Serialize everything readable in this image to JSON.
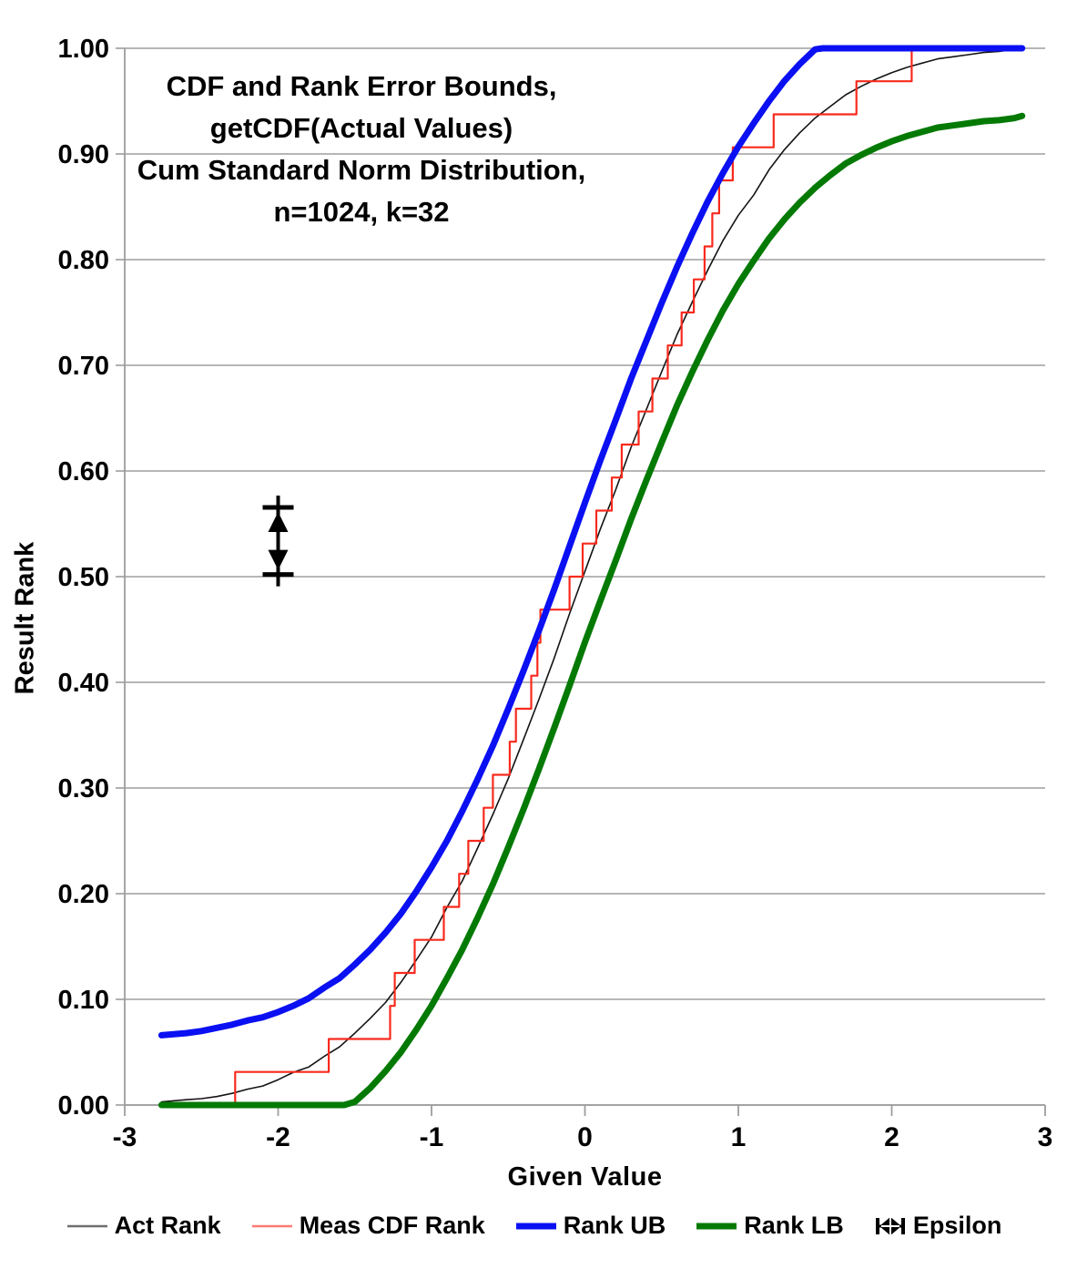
{
  "chart_data": {
    "type": "line",
    "title": "CDF and Rank Error Bounds, getCDF(Actual Values) Cum Standard Norm Distribution, n=1024, k=32",
    "title_lines": [
      "CDF and Rank Error Bounds,",
      "getCDF(Actual Values)",
      "Cum Standard Norm Distribution,",
      "n=1024, k=32"
    ],
    "xlabel": "Given Value",
    "ylabel": "Result Rank",
    "xlim": [
      -3,
      3
    ],
    "ylim": [
      0,
      1
    ],
    "grid": "horizontal",
    "legend_position": "bottom",
    "xticks": [
      {
        "v": -3,
        "label": "-3"
      },
      {
        "v": -2,
        "label": "-2"
      },
      {
        "v": -1,
        "label": "-1"
      },
      {
        "v": 0,
        "label": "0"
      },
      {
        "v": 1,
        "label": "1"
      },
      {
        "v": 2,
        "label": "2"
      },
      {
        "v": 3,
        "label": "3"
      }
    ],
    "yticks": [
      {
        "v": 0.0,
        "label": "0.00"
      },
      {
        "v": 0.1,
        "label": "0.10"
      },
      {
        "v": 0.2,
        "label": "0.20"
      },
      {
        "v": 0.3,
        "label": "0.30"
      },
      {
        "v": 0.4,
        "label": "0.40"
      },
      {
        "v": 0.5,
        "label": "0.50"
      },
      {
        "v": 0.6,
        "label": "0.60"
      },
      {
        "v": 0.7,
        "label": "0.70"
      },
      {
        "v": 0.8,
        "label": "0.80"
      },
      {
        "v": 0.9,
        "label": "0.90"
      },
      {
        "v": 1.0,
        "label": "1.00"
      }
    ],
    "grid_color": "#9d9d9d",
    "axis_color": "#9d9d9d",
    "epsilon_marker": {
      "x": -2.0,
      "y_from": 0.502,
      "y_to": 0.5655,
      "color": "#000000"
    },
    "series": [
      {
        "name": "Act Rank",
        "color": "#141414",
        "legend_color": "#6f6f6f",
        "width": 1.6,
        "swatch": "thin-line",
        "points": [
          [
            -2.76,
            0.003
          ],
          [
            -2.6,
            0.005
          ],
          [
            -2.5,
            0.006
          ],
          [
            -2.4,
            0.008
          ],
          [
            -2.3,
            0.011
          ],
          [
            -2.2,
            0.015
          ],
          [
            -2.1,
            0.018
          ],
          [
            -2.0,
            0.024
          ],
          [
            -1.9,
            0.031
          ],
          [
            -1.8,
            0.036
          ],
          [
            -1.7,
            0.046
          ],
          [
            -1.6,
            0.055
          ],
          [
            -1.5,
            0.068
          ],
          [
            -1.4,
            0.082
          ],
          [
            -1.3,
            0.097
          ],
          [
            -1.2,
            0.116
          ],
          [
            -1.1,
            0.137
          ],
          [
            -1.0,
            0.159
          ],
          [
            -0.9,
            0.187
          ],
          [
            -0.8,
            0.212
          ],
          [
            -0.7,
            0.243
          ],
          [
            -0.6,
            0.275
          ],
          [
            -0.5,
            0.309
          ],
          [
            -0.4,
            0.346
          ],
          [
            -0.3,
            0.384
          ],
          [
            -0.2,
            0.423
          ],
          [
            -0.1,
            0.465
          ],
          [
            0.0,
            0.505
          ],
          [
            0.1,
            0.545
          ],
          [
            0.2,
            0.582
          ],
          [
            0.3,
            0.622
          ],
          [
            0.4,
            0.658
          ],
          [
            0.5,
            0.694
          ],
          [
            0.6,
            0.729
          ],
          [
            0.7,
            0.76
          ],
          [
            0.8,
            0.79
          ],
          [
            0.9,
            0.818
          ],
          [
            1.0,
            0.842
          ],
          [
            1.1,
            0.861
          ],
          [
            1.2,
            0.885
          ],
          [
            1.3,
            0.904
          ],
          [
            1.4,
            0.92
          ],
          [
            1.5,
            0.934
          ],
          [
            1.6,
            0.945
          ],
          [
            1.7,
            0.956
          ],
          [
            1.8,
            0.964
          ],
          [
            1.9,
            0.971
          ],
          [
            2.0,
            0.977
          ],
          [
            2.1,
            0.982
          ],
          [
            2.2,
            0.986
          ],
          [
            2.3,
            0.99
          ],
          [
            2.4,
            0.992
          ],
          [
            2.5,
            0.994
          ],
          [
            2.6,
            0.996
          ],
          [
            2.7,
            0.997
          ],
          [
            2.8,
            0.999
          ],
          [
            2.85,
            1.0
          ]
        ]
      },
      {
        "name": "Meas CDF Rank",
        "color": "#f82a1d",
        "legend_color": "#ff7a72",
        "width": 2.2,
        "swatch": "thin-line",
        "points": [
          [
            -2.76,
            0
          ],
          [
            -2.28,
            0
          ],
          [
            -2.28,
            0.0313
          ],
          [
            -1.67,
            0.0313
          ],
          [
            -1.67,
            0.0625
          ],
          [
            -1.27,
            0.0625
          ],
          [
            -1.27,
            0.0938
          ],
          [
            -1.24,
            0.0938
          ],
          [
            -1.24,
            0.125
          ],
          [
            -1.11,
            0.125
          ],
          [
            -1.11,
            0.1563
          ],
          [
            -0.92,
            0.1563
          ],
          [
            -0.92,
            0.1875
          ],
          [
            -0.82,
            0.1875
          ],
          [
            -0.82,
            0.2188
          ],
          [
            -0.76,
            0.2188
          ],
          [
            -0.76,
            0.25
          ],
          [
            -0.66,
            0.25
          ],
          [
            -0.66,
            0.2813
          ],
          [
            -0.6,
            0.2813
          ],
          [
            -0.6,
            0.3125
          ],
          [
            -0.49,
            0.3125
          ],
          [
            -0.49,
            0.3438
          ],
          [
            -0.45,
            0.3438
          ],
          [
            -0.45,
            0.375
          ],
          [
            -0.35,
            0.375
          ],
          [
            -0.35,
            0.4063
          ],
          [
            -0.31,
            0.4063
          ],
          [
            -0.31,
            0.4375
          ],
          [
            -0.29,
            0.4375
          ],
          [
            -0.29,
            0.4688
          ],
          [
            -0.1,
            0.4688
          ],
          [
            -0.1,
            0.5
          ],
          [
            -0.015,
            0.5
          ],
          [
            -0.015,
            0.5313
          ],
          [
            0.074,
            0.5313
          ],
          [
            0.074,
            0.5625
          ],
          [
            0.175,
            0.5625
          ],
          [
            0.175,
            0.5938
          ],
          [
            0.24,
            0.5938
          ],
          [
            0.24,
            0.625
          ],
          [
            0.35,
            0.625
          ],
          [
            0.35,
            0.6563
          ],
          [
            0.44,
            0.6563
          ],
          [
            0.44,
            0.6875
          ],
          [
            0.54,
            0.6875
          ],
          [
            0.54,
            0.7188
          ],
          [
            0.63,
            0.7188
          ],
          [
            0.63,
            0.75
          ],
          [
            0.71,
            0.75
          ],
          [
            0.71,
            0.7813
          ],
          [
            0.78,
            0.7813
          ],
          [
            0.78,
            0.8125
          ],
          [
            0.83,
            0.8125
          ],
          [
            0.83,
            0.8438
          ],
          [
            0.875,
            0.8438
          ],
          [
            0.875,
            0.875
          ],
          [
            0.964,
            0.875
          ],
          [
            0.964,
            0.9063
          ],
          [
            1.23,
            0.9063
          ],
          [
            1.23,
            0.9375
          ],
          [
            1.77,
            0.9375
          ],
          [
            1.77,
            0.9688
          ],
          [
            2.13,
            0.9688
          ],
          [
            2.13,
            1.0
          ],
          [
            2.2,
            1.0
          ]
        ]
      },
      {
        "name": "Rank UB",
        "color": "#0a10f2",
        "legend_color": "#0a10f2",
        "width": 7,
        "swatch": "thick-line",
        "points": [
          [
            -2.76,
            0.066
          ],
          [
            -2.6,
            0.068
          ],
          [
            -2.5,
            0.07
          ],
          [
            -2.4,
            0.073
          ],
          [
            -2.3,
            0.076
          ],
          [
            -2.2,
            0.08
          ],
          [
            -2.1,
            0.083
          ],
          [
            -2.0,
            0.088
          ],
          [
            -1.9,
            0.094
          ],
          [
            -1.8,
            0.101
          ],
          [
            -1.7,
            0.111
          ],
          [
            -1.6,
            0.12
          ],
          [
            -1.5,
            0.133
          ],
          [
            -1.4,
            0.147
          ],
          [
            -1.3,
            0.163
          ],
          [
            -1.2,
            0.181
          ],
          [
            -1.1,
            0.202
          ],
          [
            -1.0,
            0.225
          ],
          [
            -0.9,
            0.25
          ],
          [
            -0.8,
            0.278
          ],
          [
            -0.7,
            0.308
          ],
          [
            -0.6,
            0.34
          ],
          [
            -0.5,
            0.375
          ],
          [
            -0.4,
            0.411
          ],
          [
            -0.3,
            0.449
          ],
          [
            -0.2,
            0.488
          ],
          [
            -0.1,
            0.529
          ],
          [
            0.0,
            0.57
          ],
          [
            0.1,
            0.61
          ],
          [
            0.2,
            0.648
          ],
          [
            0.3,
            0.687
          ],
          [
            0.4,
            0.723
          ],
          [
            0.5,
            0.759
          ],
          [
            0.6,
            0.793
          ],
          [
            0.7,
            0.825
          ],
          [
            0.8,
            0.855
          ],
          [
            0.9,
            0.882
          ],
          [
            1.0,
            0.907
          ],
          [
            1.1,
            0.929
          ],
          [
            1.2,
            0.95
          ],
          [
            1.3,
            0.969
          ],
          [
            1.4,
            0.985
          ],
          [
            1.5,
            0.999
          ],
          [
            1.55,
            1.0
          ],
          [
            2.85,
            1.0
          ]
        ]
      },
      {
        "name": "Rank LB",
        "color": "#047a04",
        "legend_color": "#047a04",
        "width": 7,
        "swatch": "thick-line",
        "points": [
          [
            -2.76,
            0.0
          ],
          [
            -1.57,
            0.0
          ],
          [
            -1.5,
            0.003
          ],
          [
            -1.4,
            0.016
          ],
          [
            -1.3,
            0.032
          ],
          [
            -1.2,
            0.05
          ],
          [
            -1.1,
            0.071
          ],
          [
            -1.0,
            0.094
          ],
          [
            -0.9,
            0.12
          ],
          [
            -0.8,
            0.147
          ],
          [
            -0.7,
            0.177
          ],
          [
            -0.6,
            0.209
          ],
          [
            -0.5,
            0.244
          ],
          [
            -0.4,
            0.28
          ],
          [
            -0.3,
            0.318
          ],
          [
            -0.2,
            0.357
          ],
          [
            -0.1,
            0.397
          ],
          [
            0.0,
            0.438
          ],
          [
            0.1,
            0.477
          ],
          [
            0.2,
            0.515
          ],
          [
            0.3,
            0.554
          ],
          [
            0.4,
            0.591
          ],
          [
            0.5,
            0.627
          ],
          [
            0.6,
            0.662
          ],
          [
            0.7,
            0.694
          ],
          [
            0.8,
            0.724
          ],
          [
            0.9,
            0.752
          ],
          [
            1.0,
            0.777
          ],
          [
            1.1,
            0.799
          ],
          [
            1.2,
            0.82
          ],
          [
            1.3,
            0.838
          ],
          [
            1.4,
            0.854
          ],
          [
            1.5,
            0.868
          ],
          [
            1.6,
            0.88
          ],
          [
            1.7,
            0.891
          ],
          [
            1.8,
            0.899
          ],
          [
            1.9,
            0.906
          ],
          [
            2.0,
            0.912
          ],
          [
            2.1,
            0.917
          ],
          [
            2.2,
            0.921
          ],
          [
            2.3,
            0.925
          ],
          [
            2.4,
            0.927
          ],
          [
            2.5,
            0.929
          ],
          [
            2.6,
            0.931
          ],
          [
            2.7,
            0.932
          ],
          [
            2.8,
            0.934
          ],
          [
            2.85,
            0.936
          ]
        ]
      },
      {
        "name": "Epsilon",
        "color": "#000000",
        "legend_color": "#000000",
        "width": 4,
        "swatch": "double-arrow-marker",
        "points": []
      }
    ]
  }
}
